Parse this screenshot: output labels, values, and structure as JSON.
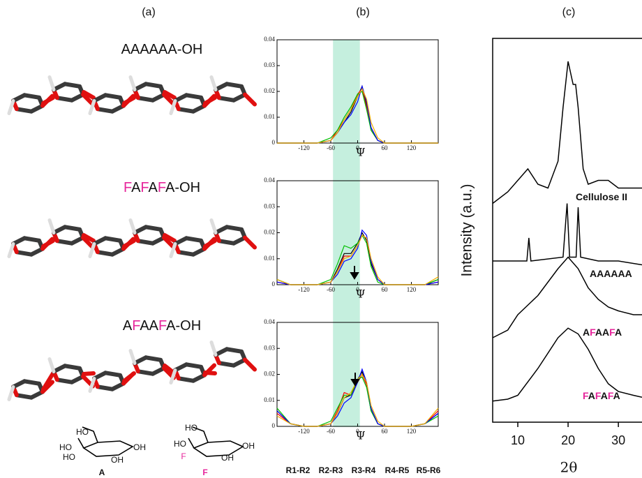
{
  "panel_labels": [
    "(a)",
    "(b)",
    "(c)"
  ],
  "highlight": {
    "letter": "F",
    "color": "#e6259b"
  },
  "panel_a": {
    "molecules": [
      "AAAAAA-OH",
      "FAFAFA-OH",
      "AFAAFA-OH"
    ],
    "structures": [
      {
        "name": "A",
        "labels": [
          "HO",
          "HO",
          "HO",
          "OH",
          "OH"
        ]
      },
      {
        "name": "F",
        "labels": [
          "HO",
          "HO",
          "F",
          "OH",
          "OH"
        ]
      }
    ]
  },
  "psi_highlight": [
    -55,
    5
  ],
  "chart_data": [
    {
      "type": "line",
      "x_label": "Ψ",
      "xlim": [
        -180,
        180
      ],
      "xticks": [
        -120,
        -60,
        0,
        60,
        120
      ],
      "ylim": [
        0,
        0.04
      ],
      "yticks": [
        0,
        0.01,
        0.02,
        0.03,
        0.04
      ],
      "x": [
        -180,
        -150,
        -120,
        -90,
        -60,
        -45,
        -30,
        -15,
        0,
        10,
        20,
        30,
        45,
        60,
        90,
        120,
        150,
        180
      ],
      "series": [
        {
          "color": "#000000",
          "values": [
            0,
            0,
            0,
            0,
            0.001,
            0.004,
            0.008,
            0.012,
            0.018,
            0.022,
            0.015,
            0.005,
            0.001,
            0,
            0,
            0,
            0,
            0
          ]
        },
        {
          "color": "#ff0000",
          "values": [
            0,
            0,
            0,
            0,
            0.001,
            0.005,
            0.009,
            0.013,
            0.019,
            0.021,
            0.014,
            0.006,
            0.001,
            0,
            0,
            0,
            0,
            0
          ]
        },
        {
          "color": "#00c000",
          "values": [
            0,
            0,
            0,
            0,
            0.002,
            0.005,
            0.01,
            0.014,
            0.019,
            0.02,
            0.013,
            0.005,
            0.001,
            0,
            0,
            0,
            0,
            0
          ]
        },
        {
          "color": "#0000ff",
          "values": [
            0,
            0,
            0,
            0,
            0.001,
            0.004,
            0.008,
            0.011,
            0.016,
            0.022,
            0.016,
            0.006,
            0.001,
            0,
            0,
            0,
            0,
            0
          ]
        },
        {
          "color": "#f0b000",
          "values": [
            0,
            0,
            0,
            0,
            0.001,
            0.004,
            0.009,
            0.013,
            0.018,
            0.021,
            0.017,
            0.008,
            0.002,
            0,
            0,
            0,
            0,
            0
          ]
        }
      ]
    },
    {
      "type": "line",
      "x_label": "Ψ",
      "xlim": [
        -180,
        180
      ],
      "xticks": [
        -120,
        -60,
        0,
        60,
        120
      ],
      "ylim": [
        0,
        0.04
      ],
      "yticks": [
        0,
        0.01,
        0.02,
        0.03,
        0.04
      ],
      "x": [
        -180,
        -150,
        -120,
        -90,
        -60,
        -45,
        -30,
        -15,
        0,
        10,
        20,
        30,
        45,
        60,
        90,
        120,
        150,
        180
      ],
      "series": [
        {
          "color": "#000000",
          "values": [
            0.002,
            0,
            0,
            0,
            0.001,
            0.006,
            0.012,
            0.012,
            0.016,
            0.02,
            0.017,
            0.008,
            0.002,
            0,
            0,
            0,
            0,
            0.002
          ]
        },
        {
          "color": "#ff0000",
          "values": [
            0.001,
            0,
            0,
            0,
            0.001,
            0.005,
            0.011,
            0.011,
            0.015,
            0.019,
            0.018,
            0.009,
            0.002,
            0,
            0,
            0,
            0,
            0.001
          ]
        },
        {
          "color": "#00c000",
          "values": [
            0.002,
            0,
            0,
            0,
            0.002,
            0.008,
            0.015,
            0.014,
            0.016,
            0.019,
            0.016,
            0.007,
            0.001,
            0,
            0,
            0,
            0,
            0.002
          ]
        },
        {
          "color": "#0000ff",
          "values": [
            0.001,
            0,
            0,
            0,
            0.001,
            0.004,
            0.009,
            0.01,
            0.014,
            0.021,
            0.019,
            0.009,
            0.002,
            0,
            0,
            0,
            0,
            0.001
          ]
        },
        {
          "color": "#f0b000",
          "values": [
            0.002,
            0,
            0,
            0,
            0.001,
            0.005,
            0.01,
            0.011,
            0.015,
            0.019,
            0.018,
            0.01,
            0.003,
            0,
            0,
            0,
            0,
            0.003
          ]
        }
      ]
    },
    {
      "type": "line",
      "x_label": "Ψ",
      "xlim": [
        -180,
        180
      ],
      "xticks": [
        -120,
        -60,
        0,
        60,
        120
      ],
      "ylim": [
        0,
        0.04
      ],
      "yticks": [
        0,
        0.01,
        0.02,
        0.03,
        0.04
      ],
      "x": [
        -180,
        -150,
        -120,
        -90,
        -60,
        -45,
        -30,
        -15,
        0,
        10,
        20,
        30,
        45,
        60,
        90,
        120,
        150,
        180
      ],
      "series": [
        {
          "name": "R1-R2",
          "color": "#000000",
          "values": [
            0.006,
            0.001,
            0,
            0,
            0.001,
            0.005,
            0.011,
            0.012,
            0.018,
            0.021,
            0.016,
            0.006,
            0.001,
            0,
            0,
            0,
            0.001,
            0.005
          ]
        },
        {
          "name": "R2-R3",
          "color": "#ff0000",
          "values": [
            0.005,
            0.001,
            0,
            0,
            0.001,
            0.006,
            0.013,
            0.012,
            0.017,
            0.02,
            0.016,
            0.007,
            0.001,
            0,
            0,
            0,
            0.001,
            0.006
          ]
        },
        {
          "name": "R3-R4",
          "color": "#00c000",
          "values": [
            0.007,
            0.001,
            0,
            0,
            0.002,
            0.007,
            0.012,
            0.012,
            0.018,
            0.019,
            0.015,
            0.006,
            0.001,
            0,
            0,
            0,
            0.001,
            0.004
          ]
        },
        {
          "name": "R4-R5",
          "color": "#0000ff",
          "values": [
            0.006,
            0.001,
            0,
            0,
            0.001,
            0.004,
            0.009,
            0.011,
            0.017,
            0.022,
            0.017,
            0.007,
            0.001,
            0,
            0,
            0,
            0.001,
            0.005
          ]
        },
        {
          "name": "R5-R6",
          "color": "#f0b000",
          "values": [
            0.004,
            0.001,
            0,
            0,
            0.001,
            0.005,
            0.011,
            0.013,
            0.018,
            0.02,
            0.017,
            0.008,
            0.002,
            0,
            0,
            0,
            0.001,
            0.007
          ]
        }
      ]
    },
    {
      "type": "line",
      "y_label": "Intensity (a.u.)",
      "x_label": "2θ",
      "xlim": [
        5,
        34.7
      ],
      "xticks": [
        10,
        20,
        30
      ],
      "ylim": [
        0,
        100
      ],
      "series": [
        {
          "name": "Cellulose II",
          "color": "#000000",
          "x": [
            5,
            8,
            10,
            12,
            14,
            16,
            18,
            19,
            20,
            20.5,
            21,
            21.5,
            22,
            23,
            24,
            26,
            28,
            30,
            33,
            34.7
          ],
          "values": [
            57,
            60,
            63,
            66,
            62,
            61,
            68,
            82,
            94,
            91,
            88,
            88,
            82,
            66,
            62,
            63,
            63,
            61,
            61,
            61
          ]
        },
        {
          "name": "AAAAAA",
          "color": "#000000",
          "x": [
            5,
            10,
            11.8,
            12.2,
            12.6,
            19,
            19.8,
            20.3,
            21.6,
            22,
            22.5,
            26,
            30,
            34.7
          ],
          "values": [
            42,
            42,
            42,
            48,
            42,
            43,
            57,
            43,
            43,
            56,
            43,
            42,
            42,
            41
          ]
        },
        {
          "name": "AFAAFA",
          "color": "#000000",
          "x": [
            5,
            8,
            10,
            14,
            18,
            20,
            22,
            24,
            26,
            28,
            30,
            33,
            34.7
          ],
          "values": [
            22,
            24,
            28,
            33,
            40,
            43,
            40,
            35,
            32,
            30,
            29,
            28,
            28
          ]
        },
        {
          "name": "FAFAFA",
          "color": "#000000",
          "x": [
            5,
            8,
            10,
            14,
            18,
            20,
            22,
            24,
            26,
            28,
            30,
            33,
            34.7
          ],
          "values": [
            5.5,
            6,
            7,
            14,
            22,
            24.5,
            23,
            19,
            14,
            10,
            8,
            7,
            6.5
          ]
        }
      ]
    }
  ]
}
